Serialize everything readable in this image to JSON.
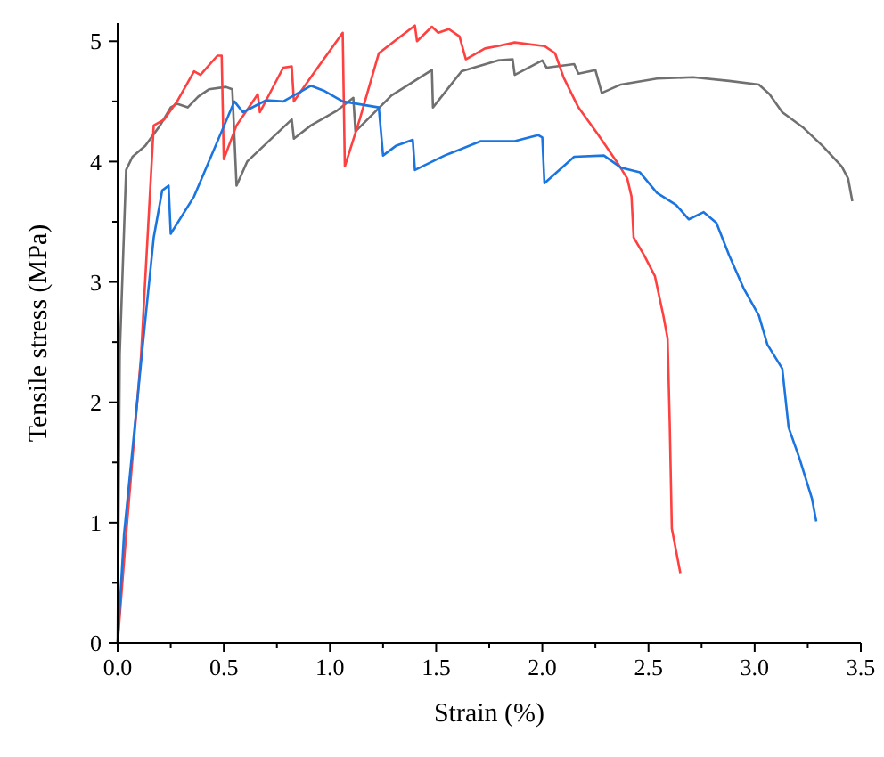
{
  "chart_data": {
    "type": "line",
    "xlabel": "Strain (%)",
    "ylabel": "Tensile stress (MPa)",
    "xlim": [
      0,
      3.5
    ],
    "ylim": [
      0,
      5.15
    ],
    "xticks": [
      {
        "value": 0,
        "label": "0.0"
      },
      0.5,
      {
        "value": 1,
        "label": "1.0"
      },
      1.5,
      {
        "value": 2,
        "label": "2.0"
      },
      2.5,
      {
        "value": 3,
        "label": "3.0"
      },
      3.5
    ],
    "yticks": [
      0,
      1,
      2,
      3,
      4,
      5
    ],
    "grid": false,
    "marker": "none",
    "line_style": "solid",
    "series": [
      {
        "color": "#707070",
        "x": [
          0,
          0.01,
          0.04,
          0.07,
          0.13,
          0.2,
          0.25,
          0.28,
          0.33,
          0.38,
          0.43,
          0.51,
          0.54,
          0.56,
          0.61,
          0.7,
          0.82,
          0.83,
          0.91,
          1.03,
          1.11,
          1.12,
          1.29,
          1.48,
          1.485,
          1.62,
          1.79,
          1.86,
          1.87,
          2.0,
          2.02,
          2.15,
          2.17,
          2.25,
          2.28,
          2.37,
          2.54,
          2.71,
          2.88,
          3.02,
          3.07,
          3.13,
          3.23,
          3.32,
          3.41,
          3.44,
          3.46
        ],
        "values": [
          0,
          2.4,
          3.93,
          4.04,
          4.13,
          4.3,
          4.45,
          4.48,
          4.45,
          4.54,
          4.6,
          4.62,
          4.6,
          3.8,
          4.0,
          4.15,
          4.35,
          4.19,
          4.3,
          4.42,
          4.53,
          4.25,
          4.55,
          4.76,
          4.45,
          4.75,
          4.84,
          4.85,
          4.72,
          4.84,
          4.78,
          4.81,
          4.73,
          4.76,
          4.57,
          4.64,
          4.69,
          4.7,
          4.67,
          4.64,
          4.56,
          4.41,
          4.28,
          4.13,
          3.96,
          3.86,
          3.67
        ]
      },
      {
        "color": "#ff4040",
        "x": [
          0,
          0.04,
          0.11,
          0.17,
          0.22,
          0.28,
          0.36,
          0.39,
          0.47,
          0.49,
          0.5,
          0.56,
          0.66,
          0.67,
          0.78,
          0.82,
          0.83,
          0.93,
          1.06,
          1.07,
          1.14,
          1.23,
          1.31,
          1.4,
          1.41,
          1.48,
          1.51,
          1.56,
          1.61,
          1.64,
          1.73,
          1.79,
          1.87,
          2.01,
          2.06,
          2.1,
          2.17,
          2.26,
          2.35,
          2.4,
          2.42,
          2.43,
          2.48,
          2.53,
          2.57,
          2.59,
          2.6,
          2.61,
          2.65
        ],
        "values": [
          0,
          0.9,
          2.38,
          4.3,
          4.35,
          4.5,
          4.75,
          4.72,
          4.88,
          4.88,
          4.02,
          4.3,
          4.56,
          4.41,
          4.78,
          4.79,
          4.5,
          4.75,
          5.07,
          3.96,
          4.35,
          4.9,
          5.01,
          5.13,
          5.0,
          5.12,
          5.07,
          5.1,
          5.04,
          4.85,
          4.94,
          4.96,
          4.99,
          4.96,
          4.9,
          4.7,
          4.45,
          4.23,
          4.0,
          3.86,
          3.71,
          3.37,
          3.22,
          3.05,
          2.72,
          2.53,
          1.83,
          0.95,
          0.58
        ]
      },
      {
        "color": "#1a75e0",
        "x": [
          0,
          0.03,
          0.13,
          0.17,
          0.21,
          0.24,
          0.25,
          0.36,
          0.55,
          0.59,
          0.7,
          0.78,
          0.91,
          0.97,
          1.06,
          1.23,
          1.25,
          1.31,
          1.39,
          1.4,
          1.54,
          1.71,
          1.87,
          1.98,
          2.0,
          2.01,
          2.15,
          2.29,
          2.37,
          2.46,
          2.54,
          2.63,
          2.69,
          2.76,
          2.82,
          2.88,
          2.95,
          3.02,
          3.06,
          3.13,
          3.16,
          3.21,
          3.27,
          3.29
        ],
        "values": [
          0,
          0.9,
          2.68,
          3.37,
          3.76,
          3.8,
          3.4,
          3.71,
          4.5,
          4.41,
          4.51,
          4.5,
          4.63,
          4.59,
          4.5,
          4.45,
          4.05,
          4.13,
          4.18,
          3.93,
          4.05,
          4.17,
          4.17,
          4.22,
          4.2,
          3.82,
          4.04,
          4.05,
          3.95,
          3.91,
          3.74,
          3.64,
          3.52,
          3.58,
          3.49,
          3.22,
          2.94,
          2.72,
          2.48,
          2.28,
          1.79,
          1.54,
          1.2,
          1.01
        ]
      }
    ]
  }
}
